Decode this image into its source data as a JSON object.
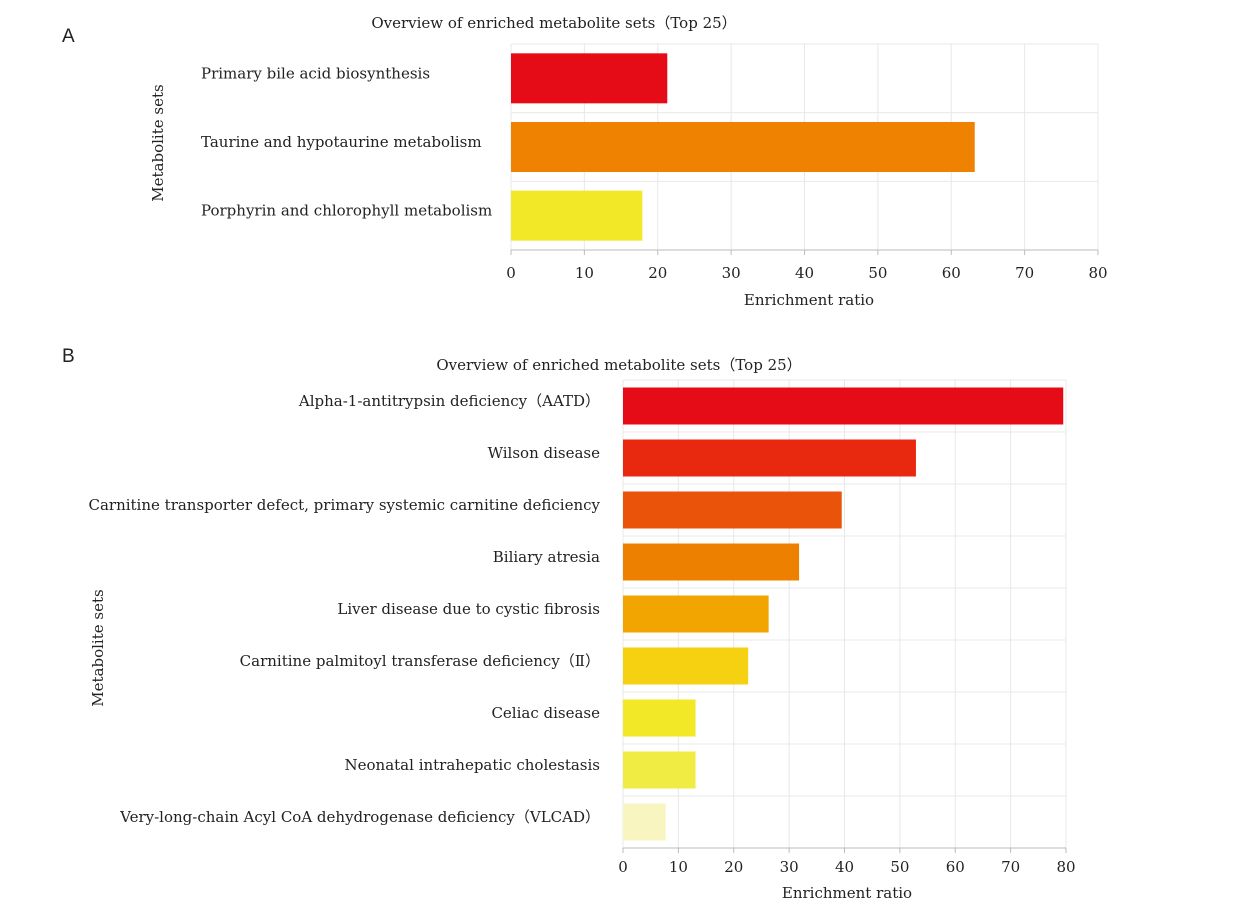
{
  "chart_data": [
    {
      "panel": "A",
      "type": "bar",
      "orientation": "horizontal",
      "title": "Overview of enriched metabolite sets（Top 25）",
      "xlabel": "Enrichment ratio",
      "ylabel": "Metabolite sets",
      "xlim": [
        0,
        80
      ],
      "xticks": [
        0,
        10,
        20,
        30,
        40,
        50,
        60,
        70,
        80
      ],
      "grid": true,
      "categories": [
        "Primary bile acid biosynthesis",
        "Taurine and hypotaurine metabolism",
        "Porphyrin and chlorophyll metabolism"
      ],
      "values": [
        21.3,
        63.2,
        17.9
      ],
      "colors": [
        "#e60c17",
        "#ef8200",
        "#f2e828"
      ]
    },
    {
      "panel": "B",
      "type": "bar",
      "orientation": "horizontal",
      "title": "Overview of enriched metabolite sets（Top 25）",
      "xlabel": "Enrichment ratio",
      "ylabel": "Metabolite sets",
      "xlim": [
        0,
        80
      ],
      "xticks": [
        0,
        10,
        20,
        30,
        40,
        50,
        60,
        70,
        80
      ],
      "grid": true,
      "categories": [
        "Alpha-1-antitrypsin deficiency（AATD）",
        "Wilson disease",
        "Carnitine transporter defect, primary systemic carnitine deficiency",
        "Biliary atresia",
        "Liver disease due to cystic fibrosis",
        "Carnitine palmitoyl transferase deficiency（Ⅱ）",
        "Celiac disease",
        "Neonatal intrahepatic cholestasis",
        "Very-long-chain Acyl CoA dehydrogenase deficiency（VLCAD）"
      ],
      "values": [
        79.5,
        52.9,
        39.5,
        31.8,
        26.3,
        22.6,
        13.1,
        13.1,
        7.7
      ],
      "colors": [
        "#e60c17",
        "#e8280f",
        "#ea530a",
        "#ee8000",
        "#f2a500",
        "#f5d112",
        "#f2e828",
        "#f1ec44",
        "#f8f5c0"
      ]
    }
  ]
}
